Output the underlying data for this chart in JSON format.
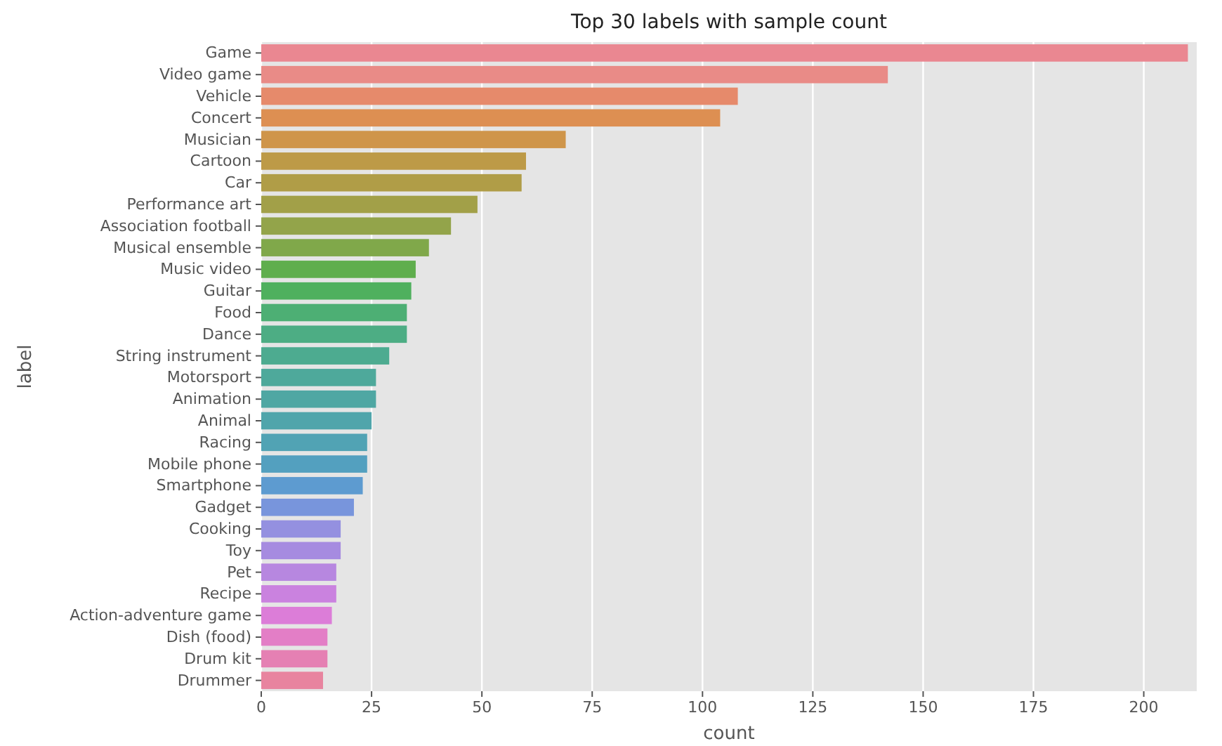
{
  "chart_data": {
    "type": "bar",
    "orientation": "horizontal",
    "title": "Top 30 labels with sample count",
    "xlabel": "count",
    "ylabel": "label",
    "categories": [
      "Game",
      "Video game",
      "Vehicle",
      "Concert",
      "Musician",
      "Cartoon",
      "Car",
      "Performance art",
      "Association football",
      "Musical ensemble",
      "Music video",
      "Guitar",
      "Food",
      "Dance",
      "String instrument",
      "Motorsport",
      "Animation",
      "Animal",
      "Racing",
      "Mobile phone",
      "Smartphone",
      "Gadget",
      "Cooking",
      "Toy",
      "Pet",
      "Recipe",
      "Action-adventure game",
      "Dish (food)",
      "Drum kit",
      "Drummer"
    ],
    "values": [
      210,
      142,
      108,
      104,
      69,
      60,
      59,
      49,
      43,
      38,
      35,
      34,
      33,
      33,
      29,
      26,
      26,
      25,
      24,
      24,
      23,
      21,
      18,
      18,
      17,
      17,
      16,
      15,
      15,
      14
    ],
    "colors": [
      "#ea8791",
      "#e98b87",
      "#e68a6b",
      "#dd8f52",
      "#cf954a",
      "#bd9a47",
      "#b09d47",
      "#a2a048",
      "#93a44a",
      "#80a84a",
      "#5fae4d",
      "#4fb05e",
      "#4daf74",
      "#4dad84",
      "#4dab90",
      "#4ea99b",
      "#4fa7a3",
      "#50a5ab",
      "#51a3b4",
      "#53a0bf",
      "#5d9bd0",
      "#7895dc",
      "#9490e0",
      "#a68be0",
      "#b787e0",
      "#ca82df",
      "#dc7dd8",
      "#e37ec6",
      "#e580b3",
      "#e8849f"
    ],
    "xlim": [
      0,
      212
    ],
    "xticks": [
      0,
      25,
      50,
      75,
      100,
      125,
      150,
      175,
      200
    ],
    "grid": "x"
  }
}
